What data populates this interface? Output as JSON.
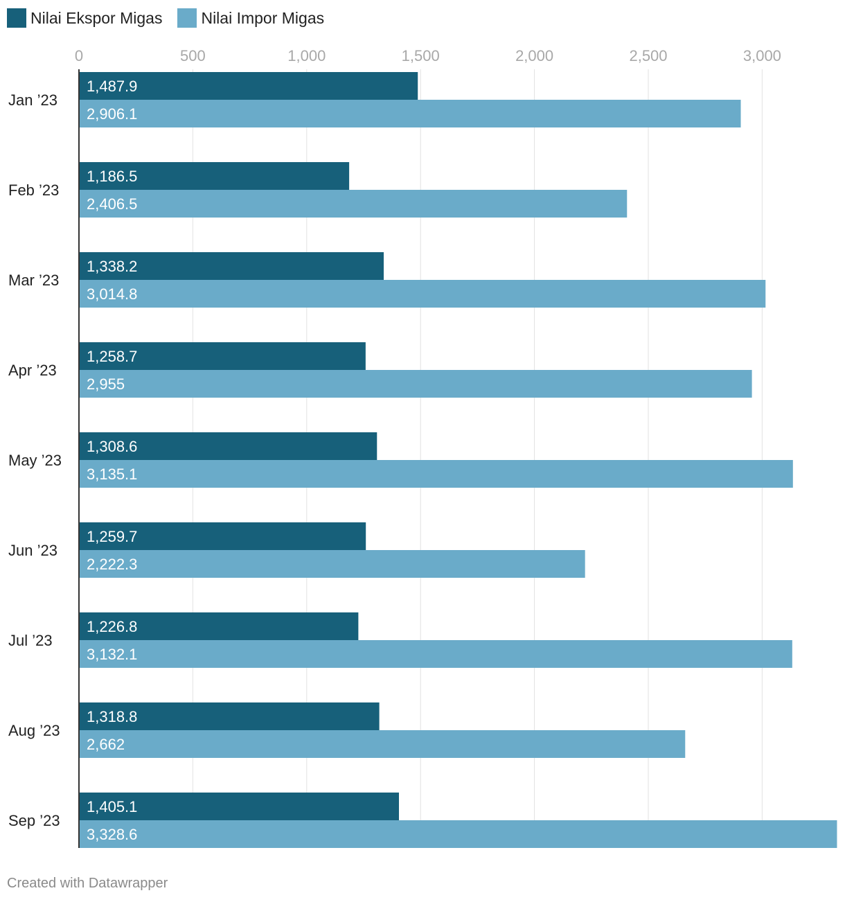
{
  "legend": {
    "series": [
      {
        "name": "Nilai Ekspor Migas",
        "color": "#17607a"
      },
      {
        "name": "Nilai Impor Migas",
        "color": "#6aabc9"
      }
    ]
  },
  "footer": {
    "credit": "Created with Datawrapper"
  },
  "chart_data": {
    "type": "bar",
    "orientation": "horizontal",
    "title": "",
    "xlabel": "",
    "ylabel": "",
    "xlim": [
      0,
      3328.6
    ],
    "ticks": [
      0,
      500,
      1000,
      1500,
      2000,
      2500,
      3000
    ],
    "tick_labels": [
      "0",
      "500",
      "1,000",
      "1,500",
      "2,000",
      "2,500",
      "3,000"
    ],
    "grid": true,
    "legend_position": "top-left",
    "categories": [
      "Jan ’23",
      "Feb ’23",
      "Mar ’23",
      "Apr ’23",
      "May ’23",
      "Jun ’23",
      "Jul ’23",
      "Aug ’23",
      "Sep ’23"
    ],
    "series": [
      {
        "name": "Nilai Ekspor Migas",
        "color": "#17607a",
        "values": [
          1487.9,
          1186.5,
          1338.2,
          1258.7,
          1308.6,
          1259.7,
          1226.8,
          1318.8,
          1405.1
        ],
        "labels": [
          "1,487.9",
          "1,186.5",
          "1,338.2",
          "1,258.7",
          "1,308.6",
          "1,259.7",
          "1,226.8",
          "1,318.8",
          "1,405.1"
        ]
      },
      {
        "name": "Nilai Impor Migas",
        "color": "#6aabc9",
        "values": [
          2906.1,
          2406.5,
          3014.8,
          2955,
          3135.1,
          2222.3,
          3132.1,
          2662,
          3328.6
        ],
        "labels": [
          "2,906.1",
          "2,406.5",
          "3,014.8",
          "2,955",
          "3,135.1",
          "2,222.3",
          "3,132.1",
          "2,662",
          "3,328.6"
        ]
      }
    ]
  }
}
